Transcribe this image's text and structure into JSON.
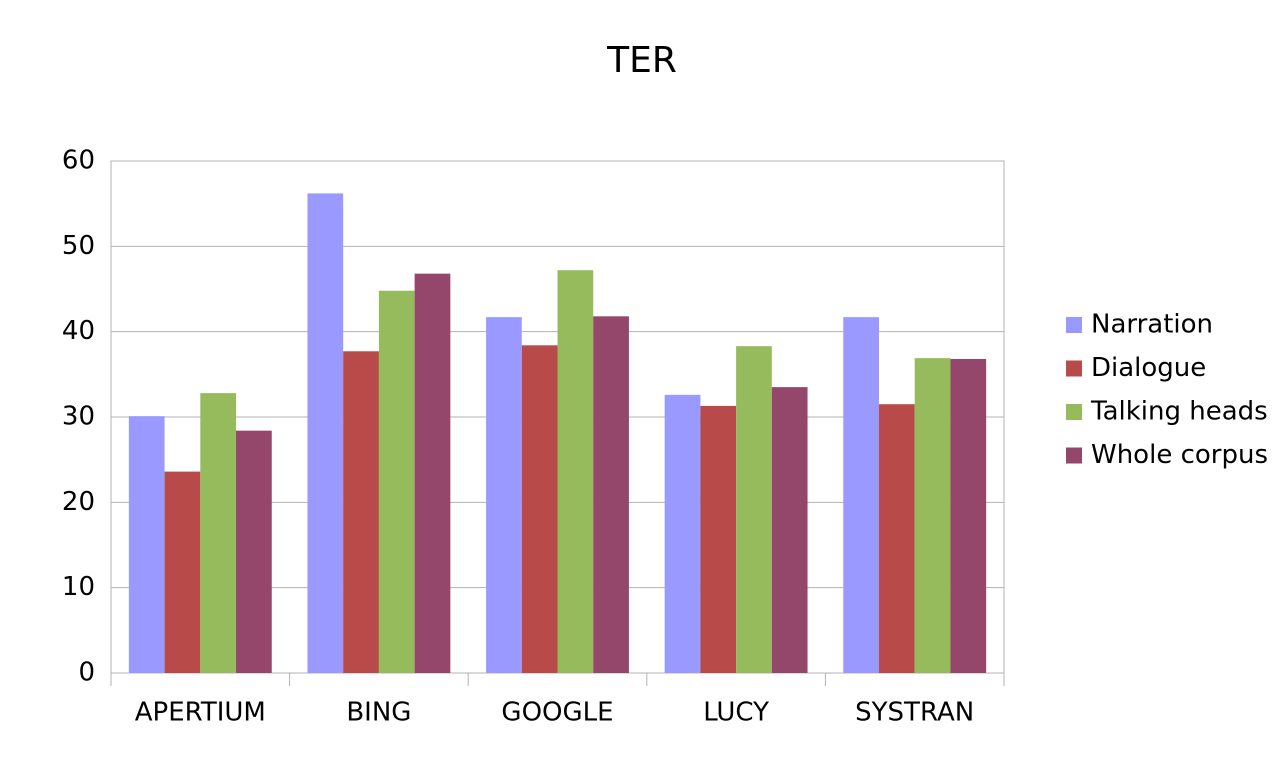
{
  "chart_data": {
    "type": "bar",
    "title": "TER",
    "categories": [
      "APERTIUM",
      "BING",
      "GOOGLE",
      "LUCY",
      "SYSTRAN"
    ],
    "series": [
      {
        "name": "Narration",
        "color": "#9999ff",
        "values": [
          30.1,
          56.2,
          41.7,
          32.6,
          41.7
        ]
      },
      {
        "name": "Dialogue",
        "color": "#b84a4a",
        "values": [
          23.6,
          37.7,
          38.4,
          31.3,
          31.5
        ]
      },
      {
        "name": "Talking heads",
        "color": "#96bb5c",
        "values": [
          32.8,
          44.8,
          47.2,
          38.3,
          36.9
        ]
      },
      {
        "name": "Whole corpus",
        "color": "#94476b",
        "values": [
          28.4,
          46.8,
          41.8,
          33.5,
          36.8
        ]
      }
    ],
    "ylim": [
      0,
      60
    ],
    "yticks": [
      0,
      10,
      20,
      30,
      40,
      50,
      60
    ],
    "grid": true,
    "legend": "right"
  }
}
